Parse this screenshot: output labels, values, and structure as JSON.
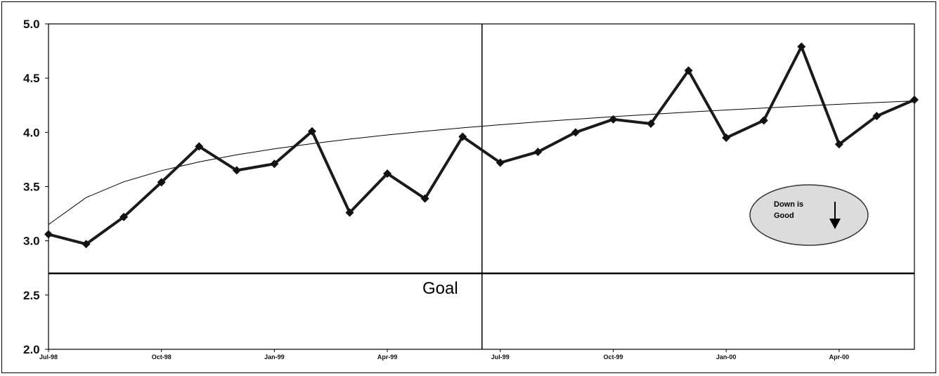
{
  "chart_data": {
    "type": "line",
    "x": [
      "Jul-98",
      "Aug-98",
      "Sep-98",
      "Oct-98",
      "Nov-98",
      "Dec-98",
      "Jan-99",
      "Feb-99",
      "Mar-99",
      "Apr-99",
      "May-99",
      "Jun-99",
      "Jul-99",
      "Aug-99",
      "Sep-99",
      "Oct-99",
      "Nov-99",
      "Dec-99",
      "Jan-00",
      "Feb-00",
      "Mar-00",
      "Apr-00",
      "May-00",
      "Jun-00"
    ],
    "series": [
      {
        "values": [
          3.06,
          2.97,
          3.22,
          3.54,
          3.87,
          3.65,
          3.71,
          4.01,
          3.26,
          3.62,
          3.39,
          3.96,
          3.72,
          3.82,
          4.0,
          4.12,
          4.08,
          4.57,
          3.95,
          4.11,
          4.79,
          3.89,
          4.15,
          4.3
        ]
      }
    ],
    "trendline": {
      "start": 3.15,
      "end": 4.29,
      "type": "logarithmic"
    },
    "goal": {
      "value": 2.7,
      "label": "Goal"
    },
    "divider_at": "Jul-99",
    "ylim": [
      2.0,
      5.0
    ],
    "yticks": [
      "5.0",
      "4.5",
      "4.0",
      "3.5",
      "3.0",
      "2.5",
      "2.0"
    ],
    "xtick_labels": [
      "Jul-98",
      "Oct-98",
      "Jan-99",
      "Apr-99",
      "Jul-99",
      "Oct-99",
      "Jan-00",
      "Apr-00"
    ],
    "grid": false,
    "title": "",
    "xlabel": "",
    "ylabel": "",
    "colors": {
      "line": "#1a1a1a",
      "marker": "#111111",
      "badge_fill": "#dcdcdc"
    }
  },
  "annotation": {
    "line1": "Down is",
    "line2": "Good",
    "icon": "down-arrow-icon"
  }
}
